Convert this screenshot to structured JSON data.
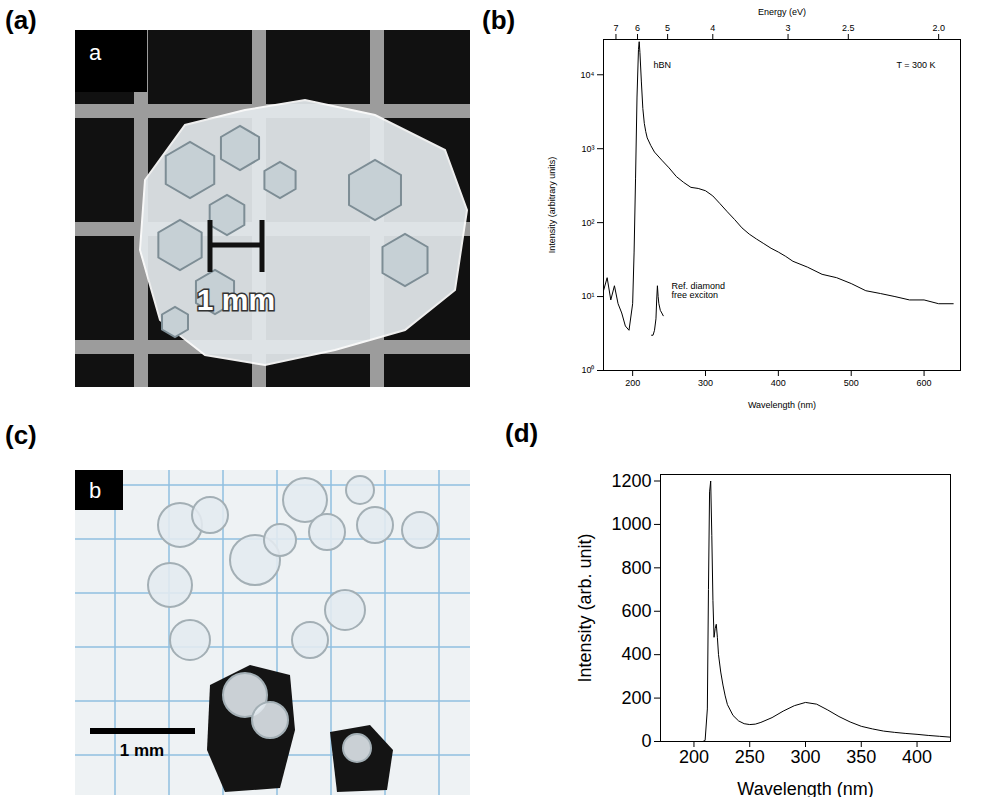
{
  "chart_data": [
    {
      "panel": "(b)",
      "type": "line",
      "x_label": "Wavelength (nm)",
      "y_label": "Intensity (arbitrary units)",
      "x2_label": "Energy (eV)",
      "annotations": [
        "T = 300 K"
      ],
      "log": "y",
      "xlim": [
        160,
        650
      ],
      "xticks": [
        200,
        300,
        400,
        500,
        600
      ],
      "x2ticks": [
        {
          "value": 177.1,
          "label": "7"
        },
        {
          "value": 206.7,
          "label": "6"
        },
        {
          "value": 248,
          "label": "5"
        },
        {
          "value": 310,
          "label": "4"
        },
        {
          "value": 413.3,
          "label": "3"
        },
        {
          "value": 496,
          "label": "2.5"
        },
        {
          "value": 620,
          "label": "2.0"
        }
      ],
      "ylim": [
        1,
        30000
      ],
      "yticks": [
        {
          "value": 1,
          "label": "10⁰"
        },
        {
          "value": 10,
          "label": "10¹"
        },
        {
          "value": 100,
          "label": "10²"
        },
        {
          "value": 1000,
          "label": "10³"
        },
        {
          "value": 10000,
          "label": "10⁴"
        }
      ],
      "series": [
        {
          "name": "hBN",
          "color": "#000000",
          "x": [
            160,
            165,
            170,
            175,
            180,
            185,
            190,
            195,
            200,
            202,
            204,
            206,
            208,
            209,
            210,
            212,
            214,
            216,
            218,
            220,
            225,
            230,
            240,
            250,
            260,
            270,
            280,
            290,
            300,
            310,
            320,
            330,
            340,
            350,
            360,
            370,
            380,
            390,
            400,
            410,
            420,
            440,
            460,
            480,
            500,
            520,
            540,
            560,
            580,
            600,
            620,
            640
          ],
          "values": [
            12,
            18,
            9,
            14,
            8,
            6,
            4,
            3.5,
            8,
            40,
            400,
            5000,
            22000,
            28000,
            20000,
            8000,
            3500,
            2200,
            1700,
            1400,
            1100,
            900,
            700,
            550,
            420,
            350,
            300,
            290,
            270,
            230,
            180,
            140,
            110,
            85,
            70,
            60,
            52,
            45,
            40,
            35,
            30,
            25,
            20,
            18,
            15,
            12,
            11,
            10,
            9,
            9,
            8,
            8
          ]
        },
        {
          "name": "Ref. diamond\nfree exciton",
          "color": "#000000",
          "x": [
            226,
            228,
            230,
            232,
            233,
            234,
            235,
            236,
            238,
            240,
            242
          ],
          "values": [
            3,
            3,
            3.5,
            5,
            9,
            14,
            10,
            8,
            6.5,
            6,
            5.5
          ]
        }
      ]
    },
    {
      "panel": "(d)",
      "type": "line",
      "x_label": "Wavelength (nm)",
      "y_label": "Intensity (arb. unit)",
      "xlim": [
        170,
        430
      ],
      "xticks": [
        200,
        250,
        300,
        350,
        400
      ],
      "ylim": [
        0,
        1230
      ],
      "yticks": [
        0,
        200,
        400,
        600,
        800,
        1000,
        1200
      ],
      "color": "#000000",
      "x": [
        208,
        210,
        212,
        213,
        214,
        215,
        216,
        217,
        218,
        219,
        220,
        221,
        222,
        224,
        226,
        228,
        230,
        235,
        240,
        245,
        250,
        255,
        260,
        270,
        280,
        290,
        300,
        310,
        320,
        330,
        340,
        350,
        360,
        370,
        380,
        390,
        400,
        410,
        420,
        430
      ],
      "values": [
        0,
        5,
        150,
        700,
        1150,
        1200,
        950,
        650,
        480,
        520,
        540,
        480,
        400,
        320,
        260,
        210,
        170,
        120,
        95,
        82,
        78,
        80,
        88,
        110,
        140,
        165,
        180,
        172,
        145,
        115,
        90,
        70,
        58,
        48,
        42,
        37,
        33,
        28,
        24,
        20
      ]
    }
  ],
  "photos": [
    {
      "panel": "(a)",
      "inset": "a",
      "scale_bar": "1 mm"
    },
    {
      "panel": "(c)",
      "inset": "b",
      "scale_bar": "1 mm"
    }
  ]
}
